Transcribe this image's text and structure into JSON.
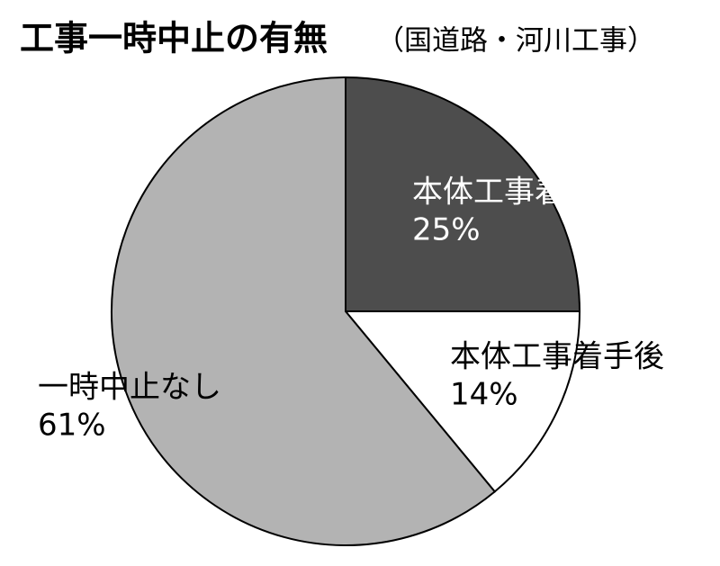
{
  "chart_data": {
    "type": "pie",
    "title": "工事一時中止の有無",
    "subtitle": "（国道路・河川工事）",
    "categories": [
      "本体工事着手前",
      "本体工事着手後",
      "一時中止なし"
    ],
    "values": [
      25,
      14,
      61
    ],
    "value_labels": [
      "25%",
      "14%",
      "61%"
    ],
    "colors": [
      "#4d4d4d",
      "#ffffff",
      "#b3b3b3"
    ],
    "start_angle": 0,
    "direction": "clockwise"
  }
}
